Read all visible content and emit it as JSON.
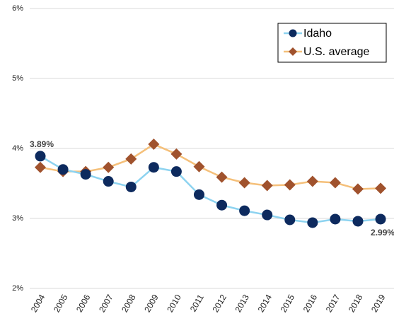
{
  "chart_data": {
    "type": "line",
    "categories": [
      "2004",
      "2005",
      "2006",
      "2007",
      "2008",
      "2009",
      "2010",
      "2011",
      "2012",
      "2013",
      "2014",
      "2015",
      "2016",
      "2017",
      "2018",
      "2019"
    ],
    "series": [
      {
        "name": "Idaho",
        "color": "#0d2a5e",
        "line_color": "#8dd3f0",
        "marker": "circle",
        "values": [
          3.89,
          3.7,
          3.63,
          3.53,
          3.45,
          3.73,
          3.67,
          3.34,
          3.19,
          3.11,
          3.05,
          2.98,
          2.94,
          2.99,
          2.96,
          2.99
        ],
        "value_labels": [
          "3.89%",
          null,
          null,
          null,
          null,
          null,
          null,
          null,
          null,
          null,
          null,
          null,
          null,
          null,
          null,
          "2.99%"
        ]
      },
      {
        "name": "U.S. average",
        "color": "#a0522d",
        "line_color": "#f5c07a",
        "marker": "diamond",
        "values": [
          3.73,
          3.67,
          3.67,
          3.73,
          3.85,
          4.06,
          3.92,
          3.74,
          3.59,
          3.51,
          3.47,
          3.48,
          3.53,
          3.51,
          3.42,
          3.43
        ]
      }
    ],
    "ylim": [
      2,
      6
    ],
    "yticks": [
      {
        "value": 2,
        "label": "2%"
      },
      {
        "value": 3,
        "label": "3%"
      },
      {
        "value": 4,
        "label": "4%"
      },
      {
        "value": 5,
        "label": "5%"
      },
      {
        "value": 6,
        "label": "6%"
      }
    ],
    "grid": true,
    "legend": "top-right"
  }
}
